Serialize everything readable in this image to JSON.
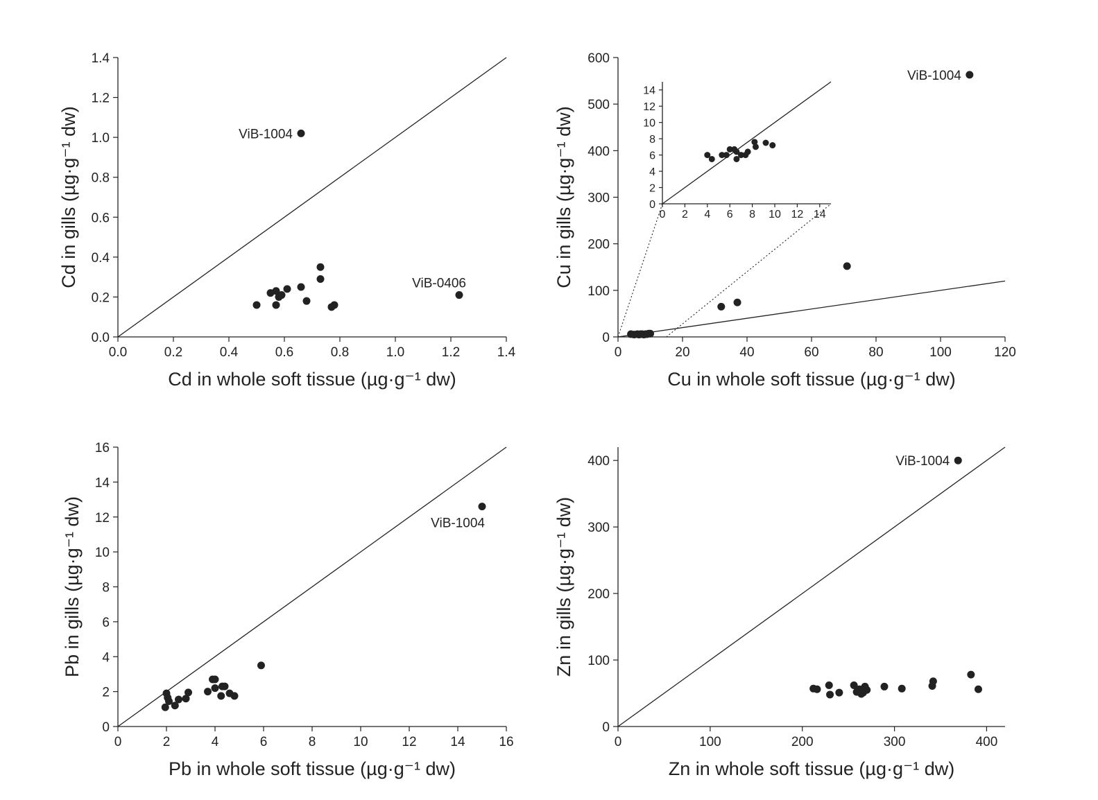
{
  "colors": {
    "ink": "#222222",
    "background": "#ffffff"
  },
  "chart_data": [
    {
      "id": "cd",
      "type": "scatter",
      "title": "",
      "xlabel": "Cd in whole soft tissue (µg·g⁻¹ dw)",
      "ylabel": "Cd in gills (µg·g⁻¹ dw)",
      "xlim": [
        0,
        1.4
      ],
      "ylim": [
        0,
        1.4
      ],
      "xticks": [
        0.0,
        0.2,
        0.4,
        0.6,
        0.8,
        1.0,
        1.2,
        1.4
      ],
      "yticks": [
        0.0,
        0.2,
        0.4,
        0.6,
        0.8,
        1.0,
        1.2,
        1.4
      ],
      "xtick_labels": [
        "0.0",
        "0.2",
        "0.4",
        "0.6",
        "0.8",
        "1.0",
        "1.2",
        "1.4"
      ],
      "ytick_labels": [
        "0.0",
        "0.2",
        "0.4",
        "0.6",
        "0.8",
        "1.0",
        "1.2",
        "1.4"
      ],
      "reference_line": {
        "label": "1:1",
        "x": [
          0,
          1.4
        ],
        "y": [
          0,
          1.4
        ]
      },
      "points": [
        [
          0.66,
          1.02
        ],
        [
          1.23,
          0.21
        ],
        [
          0.73,
          0.35
        ],
        [
          0.73,
          0.29
        ],
        [
          0.66,
          0.25
        ],
        [
          0.61,
          0.24
        ],
        [
          0.55,
          0.22
        ],
        [
          0.57,
          0.23
        ],
        [
          0.59,
          0.21
        ],
        [
          0.58,
          0.2
        ],
        [
          0.5,
          0.16
        ],
        [
          0.57,
          0.16
        ],
        [
          0.68,
          0.18
        ],
        [
          0.77,
          0.15
        ],
        [
          0.78,
          0.16
        ]
      ],
      "annotations": [
        {
          "text": "ViB-1004",
          "x": 0.66,
          "y": 1.02
        },
        {
          "text": "ViB-0406",
          "x": 1.23,
          "y": 0.21
        }
      ]
    },
    {
      "id": "cu",
      "type": "scatter",
      "title": "",
      "xlabel": "Cu in whole soft tissue (µg·g⁻¹ dw)",
      "ylabel": "Cu in gills (µg·g⁻¹ dw)",
      "xlim": [
        0,
        120
      ],
      "ylim": [
        0,
        600
      ],
      "xticks": [
        0,
        20,
        40,
        60,
        80,
        100,
        120
      ],
      "yticks": [
        0,
        100,
        200,
        300,
        400,
        500,
        600
      ],
      "xtick_labels": [
        "0",
        "20",
        "40",
        "60",
        "80",
        "100",
        "120"
      ],
      "ytick_labels": [
        "0",
        "100",
        "200",
        "300",
        "400",
        "500",
        "600"
      ],
      "reference_line": {
        "label": "1:1",
        "x": [
          0,
          120
        ],
        "y": [
          0,
          120
        ]
      },
      "points": [
        [
          109,
          563
        ],
        [
          71,
          152
        ],
        [
          37,
          74
        ],
        [
          32,
          65
        ],
        [
          4,
          6
        ],
        [
          5,
          5
        ],
        [
          6,
          6
        ],
        [
          6.5,
          5
        ],
        [
          7,
          6
        ],
        [
          7.5,
          6
        ],
        [
          8,
          5
        ],
        [
          8.5,
          6
        ],
        [
          9,
          6
        ],
        [
          9.5,
          7
        ],
        [
          10,
          7
        ]
      ],
      "annotations": [
        {
          "text": "ViB-1004",
          "x": 109,
          "y": 563
        }
      ],
      "inset": {
        "xlim": [
          0,
          15
        ],
        "ylim": [
          0,
          15
        ],
        "xticks": [
          0,
          2,
          4,
          6,
          8,
          10,
          12,
          14
        ],
        "yticks": [
          0,
          2,
          4,
          6,
          8,
          10,
          12,
          14
        ],
        "xtick_labels": [
          "0",
          "2",
          "4",
          "6",
          "8",
          "10",
          "12",
          "14"
        ],
        "ytick_labels": [
          "0",
          "2",
          "4",
          "6",
          "8",
          "10",
          "12",
          "14"
        ],
        "reference_line": {
          "label": "1:1",
          "x": [
            0,
            15
          ],
          "y": [
            0,
            15
          ]
        },
        "zoom_region": {
          "x": [
            0,
            15
          ],
          "y": [
            0,
            15
          ]
        },
        "points": [
          [
            4.0,
            6.0
          ],
          [
            4.4,
            5.5
          ],
          [
            5.3,
            6.0
          ],
          [
            5.7,
            6.0
          ],
          [
            6.0,
            6.7
          ],
          [
            6.4,
            6.7
          ],
          [
            6.6,
            6.4
          ],
          [
            6.6,
            5.5
          ],
          [
            7.0,
            6.0
          ],
          [
            7.4,
            6.0
          ],
          [
            7.6,
            6.4
          ],
          [
            8.2,
            7.6
          ],
          [
            8.3,
            7.0
          ],
          [
            9.2,
            7.5
          ],
          [
            9.8,
            7.2
          ]
        ]
      }
    },
    {
      "id": "pb",
      "type": "scatter",
      "title": "",
      "xlabel": "Pb in whole soft tissue (µg·g⁻¹ dw)",
      "ylabel": "Pb in gills (µg·g⁻¹ dw)",
      "xlim": [
        0,
        16
      ],
      "ylim": [
        0,
        16
      ],
      "xticks": [
        0,
        2,
        4,
        6,
        8,
        10,
        12,
        14,
        16
      ],
      "yticks": [
        0,
        2,
        4,
        6,
        8,
        10,
        12,
        14,
        16
      ],
      "xtick_labels": [
        "0",
        "2",
        "4",
        "6",
        "8",
        "10",
        "12",
        "14",
        "16"
      ],
      "ytick_labels": [
        "0",
        "2",
        "4",
        "6",
        "8",
        "10",
        "12",
        "14",
        "16"
      ],
      "reference_line": {
        "label": "1:1",
        "x": [
          0,
          16
        ],
        "y": [
          0,
          16
        ]
      },
      "points": [
        [
          15.0,
          12.6
        ],
        [
          5.9,
          3.5
        ],
        [
          3.9,
          2.7
        ],
        [
          4.0,
          2.7
        ],
        [
          4.3,
          2.3
        ],
        [
          4.4,
          2.3
        ],
        [
          3.7,
          2.0
        ],
        [
          4.0,
          2.2
        ],
        [
          4.6,
          1.9
        ],
        [
          4.8,
          1.75
        ],
        [
          4.25,
          1.75
        ],
        [
          2.9,
          1.95
        ],
        [
          2.8,
          1.6
        ],
        [
          2.5,
          1.55
        ],
        [
          2.35,
          1.2
        ],
        [
          2.1,
          1.45
        ],
        [
          2.0,
          1.9
        ],
        [
          2.05,
          1.65
        ],
        [
          1.95,
          1.1
        ]
      ],
      "annotations": [
        {
          "text": "ViB-1004",
          "x": 15.0,
          "y": 12.6
        }
      ]
    },
    {
      "id": "zn",
      "type": "scatter",
      "title": "",
      "xlabel": "Zn in whole soft tissue (µg·g⁻¹ dw)",
      "ylabel": "Zn in gills (µg·g⁻¹ dw)",
      "xlim": [
        0,
        420
      ],
      "ylim": [
        0,
        420
      ],
      "xticks": [
        0,
        100,
        200,
        300,
        400
      ],
      "yticks": [
        0,
        100,
        200,
        300,
        400
      ],
      "xtick_labels": [
        "0",
        "100",
        "200",
        "300",
        "400"
      ],
      "ytick_labels": [
        "0",
        "100",
        "200",
        "300",
        "400"
      ],
      "reference_line": {
        "label": "1:1",
        "x": [
          0,
          420
        ],
        "y": [
          0,
          420
        ]
      },
      "points": [
        [
          369,
          400
        ],
        [
          212,
          57
        ],
        [
          216,
          56
        ],
        [
          229,
          62
        ],
        [
          230,
          48
        ],
        [
          240,
          51
        ],
        [
          256,
          62
        ],
        [
          259,
          52
        ],
        [
          262,
          56
        ],
        [
          264,
          49
        ],
        [
          266,
          51
        ],
        [
          268,
          60
        ],
        [
          270,
          55
        ],
        [
          289,
          60
        ],
        [
          308,
          57
        ],
        [
          341,
          61
        ],
        [
          342,
          68
        ],
        [
          383,
          78
        ],
        [
          391,
          56
        ]
      ],
      "annotations": [
        {
          "text": "ViB-1004",
          "x": 369,
          "y": 400
        }
      ]
    }
  ]
}
